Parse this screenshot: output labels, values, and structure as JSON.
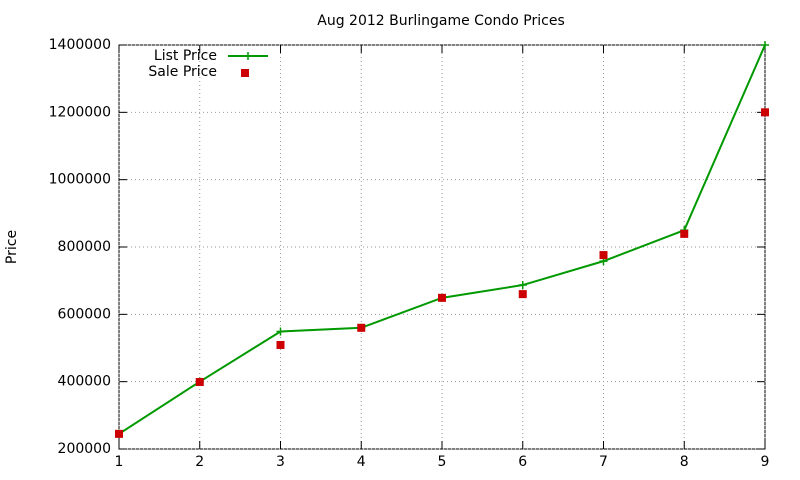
{
  "chart_data": {
    "type": "line",
    "title": "Aug 2012 Burlingame Condo Prices",
    "y_label": "Price",
    "x": [
      1,
      2,
      3,
      4,
      5,
      6,
      7,
      8,
      9
    ],
    "series": [
      {
        "name": "List Price",
        "color": "#009900",
        "style": "linespoints",
        "values": [
          245000,
          400000,
          549000,
          560000,
          649000,
          687000,
          758000,
          850000,
          1400000
        ]
      },
      {
        "name": "Sale Price",
        "color": "#cc0000",
        "style": "points",
        "values": [
          245000,
          399000,
          509000,
          560000,
          649000,
          660000,
          776000,
          839000,
          1200000
        ]
      }
    ],
    "xlim": [
      1,
      9
    ],
    "xticks": [
      1,
      2,
      3,
      4,
      5,
      6,
      7,
      8,
      9
    ],
    "ylim": [
      200000,
      1400000
    ],
    "yticks": [
      200000,
      400000,
      600000,
      800000,
      1000000,
      1200000,
      1400000
    ],
    "grid": true,
    "legend": "top-left"
  }
}
